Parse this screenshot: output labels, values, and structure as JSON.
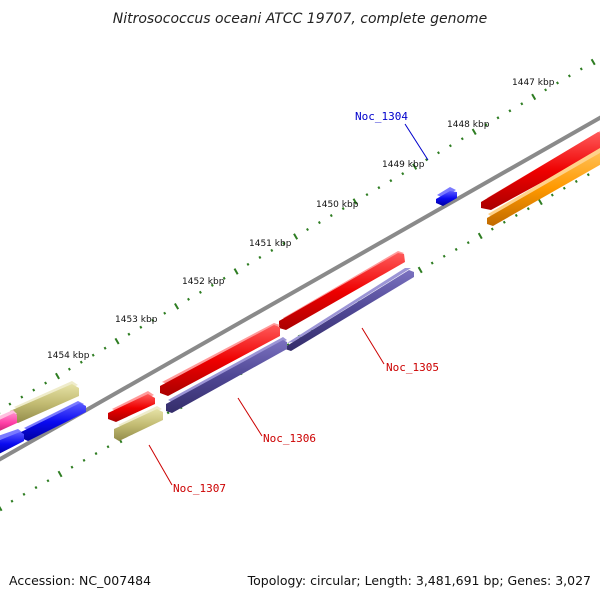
{
  "title": "Nitrosococcus oceani ATCC 19707, complete genome",
  "colors": {
    "backbone": "#8a8a8a",
    "tick": "#2e7d22",
    "label_red": "#cc0000",
    "label_blue": "#0000cc"
  },
  "ticks": [
    "1447 kbp",
    "1448 kbp",
    "1449 kbp",
    "1450 kbp",
    "1451 kbp",
    "1452 kbp",
    "1453 kbp",
    "1454 kbp"
  ],
  "genes": [
    {
      "label": "Noc_1304",
      "color": "#0000cc"
    },
    {
      "label": "Noc_1305",
      "color": "#cc0000"
    },
    {
      "label": "Noc_1306",
      "color": "#cc0000"
    },
    {
      "label": "Noc_1307",
      "color": "#cc0000"
    }
  ],
  "footer": {
    "accession": "Accession: NC_007484",
    "summary": "Topology: circular; Length: 3,481,691 bp; Genes: 3,027"
  }
}
